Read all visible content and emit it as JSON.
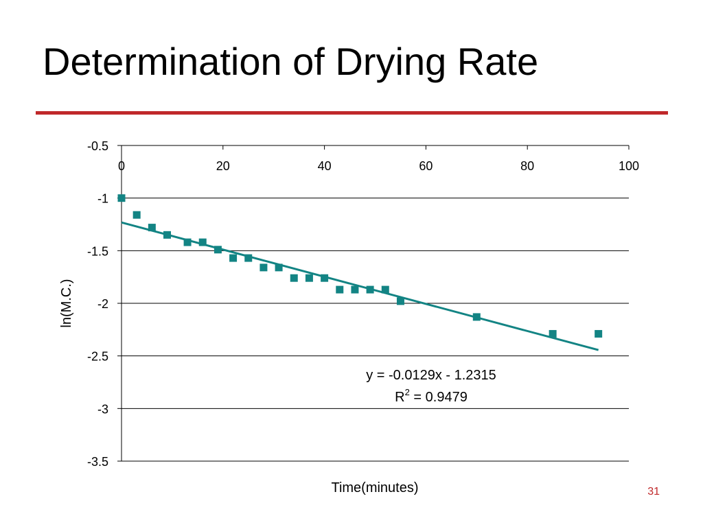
{
  "slide": {
    "title": "Determination of Drying Rate",
    "number": "31"
  },
  "colors": {
    "rule": "#c0282a",
    "marker": "#138484",
    "trendline": "#138484",
    "slide_number": "#c0282a",
    "grid": "#000000"
  },
  "chart_data": {
    "type": "scatter",
    "title": "",
    "xlabel": "Time(minutes)",
    "ylabel": "ln(M.C.)",
    "xlim": [
      0,
      100
    ],
    "ylim": [
      -3.5,
      -0.5
    ],
    "x_ticks": [
      0,
      20,
      40,
      60,
      80,
      100
    ],
    "y_ticks": [
      -0.5,
      -1,
      -1.5,
      -2,
      -2.5,
      -3,
      -3.5
    ],
    "x_axis_position": "top",
    "grid": "horizontal",
    "marker": "square",
    "points": [
      {
        "x": 0,
        "y": -1.0
      },
      {
        "x": 3,
        "y": -1.16
      },
      {
        "x": 6,
        "y": -1.28
      },
      {
        "x": 9,
        "y": -1.35
      },
      {
        "x": 13,
        "y": -1.42
      },
      {
        "x": 16,
        "y": -1.42
      },
      {
        "x": 19,
        "y": -1.49
      },
      {
        "x": 22,
        "y": -1.57
      },
      {
        "x": 25,
        "y": -1.57
      },
      {
        "x": 28,
        "y": -1.66
      },
      {
        "x": 31,
        "y": -1.66
      },
      {
        "x": 34,
        "y": -1.76
      },
      {
        "x": 37,
        "y": -1.76
      },
      {
        "x": 40,
        "y": -1.76
      },
      {
        "x": 43,
        "y": -1.87
      },
      {
        "x": 46,
        "y": -1.87
      },
      {
        "x": 49,
        "y": -1.87
      },
      {
        "x": 52,
        "y": -1.87
      },
      {
        "x": 55,
        "y": -1.98
      },
      {
        "x": 70,
        "y": -2.13
      },
      {
        "x": 85,
        "y": -2.29
      },
      {
        "x": 94,
        "y": -2.29
      }
    ],
    "trendline": {
      "slope": -0.0129,
      "intercept": -1.2315,
      "x_range": [
        0,
        94
      ],
      "equation_text": "y = -0.0129x - 1.2315",
      "r2_label": "R",
      "r2_superscript": "2",
      "r2_value_text": " = 0.9479"
    }
  }
}
